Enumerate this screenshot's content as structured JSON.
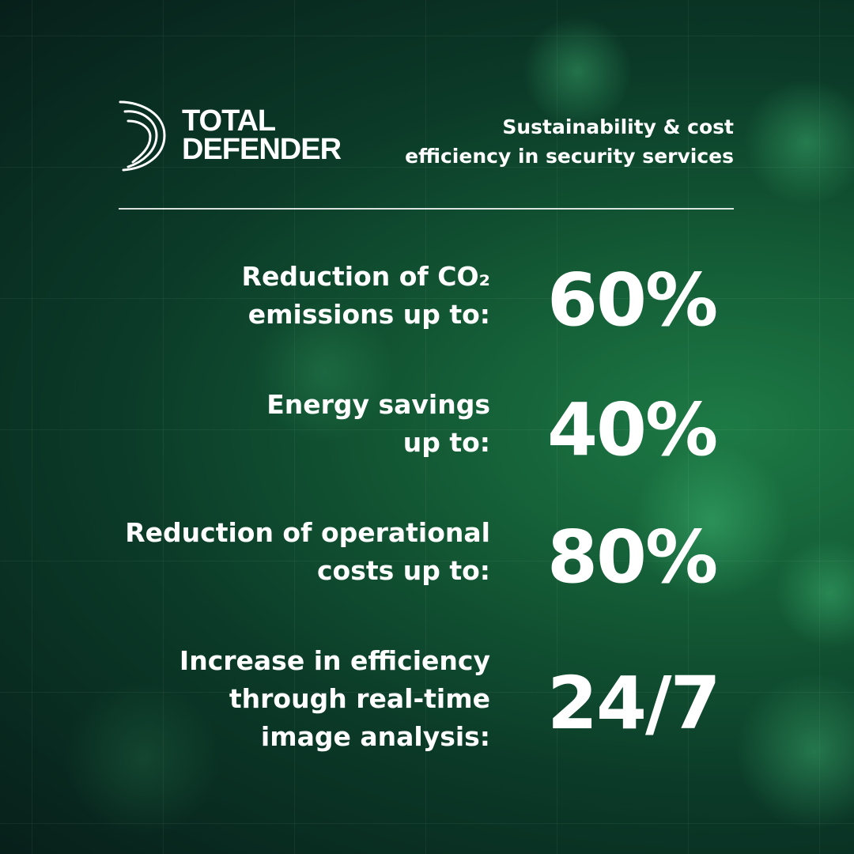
{
  "brand": {
    "line1": "TOTAL",
    "line2": "DEFENDER"
  },
  "tagline": {
    "line1": "Sustainability & cost",
    "line2": "efficiency in security services"
  },
  "stats": [
    {
      "label_lines": [
        "Reduction of CO₂",
        "emissions up to:"
      ],
      "value": "60%"
    },
    {
      "label_lines": [
        "Energy savings",
        "up to:"
      ],
      "value": "40%"
    },
    {
      "label_lines": [
        "Reduction of operational",
        "costs up to:"
      ],
      "value": "80%"
    },
    {
      "label_lines": [
        "Increase in efficiency",
        "through real-time",
        "image analysis:"
      ],
      "value": "24/7"
    }
  ],
  "colors": {
    "background_dark": "#071f1a",
    "background_green": "#1d7a45",
    "text": "#ffffff"
  }
}
